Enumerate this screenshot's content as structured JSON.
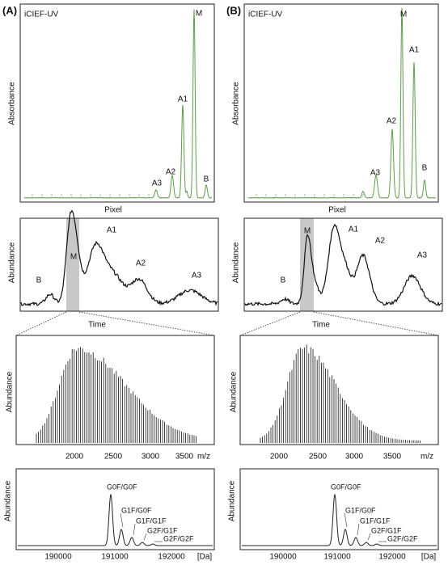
{
  "panels": [
    {
      "label": "(A)",
      "uv": {
        "title": "iCIEF-UV",
        "ylabel": "Absorbance",
        "xlabel": "Pixel",
        "peaks": [
          "M",
          "A1",
          "A2",
          "A3",
          "B"
        ]
      },
      "ms": {
        "ylabel": "Abundance",
        "xlabel": "Time",
        "peaks": [
          "M",
          "A1",
          "A2",
          "A3",
          "B"
        ]
      },
      "spectrum": {
        "ylabel": "Abundance",
        "xticks": [
          "2000",
          "2500",
          "3000",
          "3500"
        ],
        "unit": "m/z"
      },
      "deconv": {
        "ylabel": "Abundance",
        "xticks": [
          "190000",
          "191000",
          "192000"
        ],
        "unit": "[Da]",
        "glycoforms": [
          "G0F/G0F",
          "G1F/G0F",
          "G1F/G1F",
          "G2F/G1F",
          "G2F/G2F"
        ]
      }
    },
    {
      "label": "(B)",
      "uv": {
        "title": "iCIEF-UV",
        "ylabel": "Absorbance",
        "xlabel": "Pixel",
        "peaks": [
          "M",
          "A1",
          "A2",
          "A3",
          "B"
        ]
      },
      "ms": {
        "ylabel": "Abundance",
        "xlabel": "Time",
        "peaks": [
          "M",
          "A1",
          "A2",
          "A3",
          "B"
        ]
      },
      "spectrum": {
        "ylabel": "Abundance",
        "xticks": [
          "2000",
          "2500",
          "3000",
          "3500"
        ],
        "unit": "m/z"
      },
      "deconv": {
        "ylabel": "Abundance",
        "xticks": [
          "190000",
          "191000",
          "192000"
        ],
        "unit": "[Da]",
        "glycoforms": [
          "G0F/G0F",
          "G1F/G0F",
          "G1F/G1F",
          "G2F/G1F",
          "G2F/G2F"
        ]
      }
    }
  ]
}
